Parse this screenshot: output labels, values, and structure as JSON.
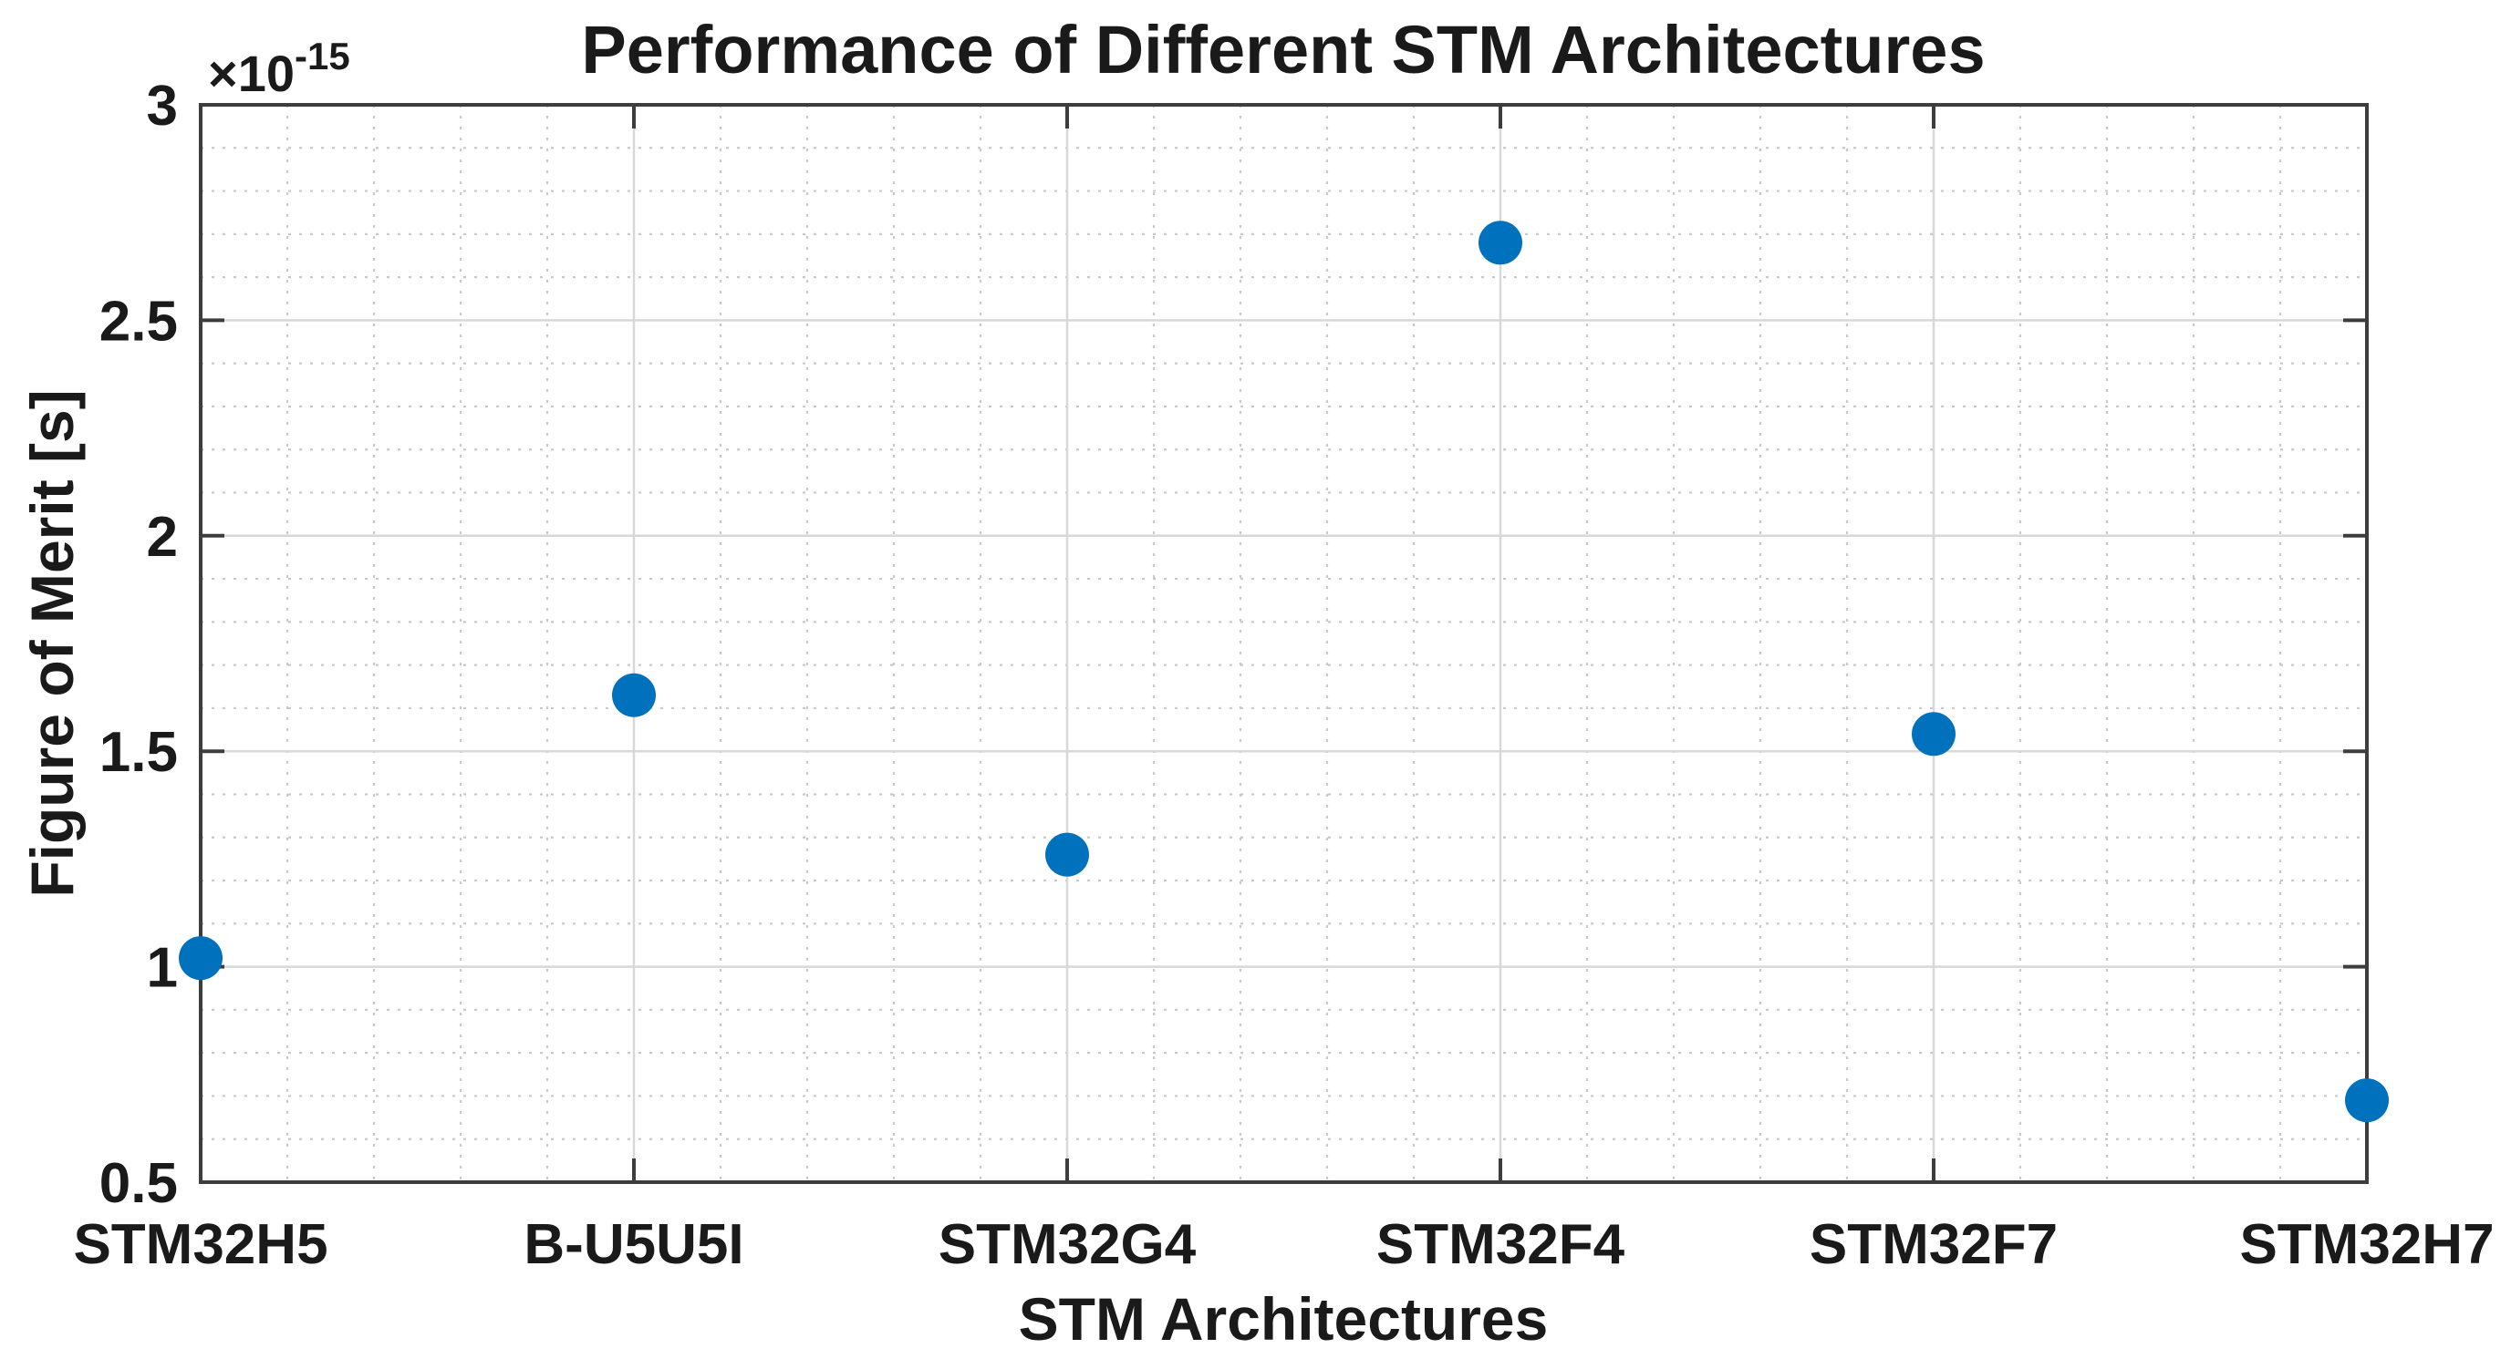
{
  "chart_data": {
    "type": "scatter",
    "title": "Performance of Different STM Architectures",
    "xlabel": "STM Architectures",
    "ylabel": "Figure of Merit [s]",
    "y_exponent_label": "×10",
    "y_exponent_power": "-15",
    "categories": [
      "STM32H5",
      "B-U5U5I",
      "STM32G4",
      "STM32F4",
      "STM32F7",
      "STM32H7"
    ],
    "values": [
      1.02,
      1.63,
      1.26,
      2.68,
      1.54,
      0.69
    ],
    "values_scale": "1e-15",
    "values_unit": "s",
    "ylim": [
      0.5,
      3
    ],
    "y_major_ticks": [
      0.5,
      1,
      1.5,
      2,
      2.5,
      3
    ],
    "y_tick_labels": [
      "0.5",
      "1",
      "1.5",
      "2",
      "2.5",
      "3"
    ],
    "y_minor_step": 0.1,
    "x_minor_divisions_per_major": 5,
    "grid": "on",
    "minor_grid": "on",
    "legend": "none",
    "marker_color": "#0072BD",
    "marker_radius_px": 24,
    "axis_color": "#3d3d3d",
    "text_color": "#1a1a1a",
    "major_grid_color": "#d8d8d8",
    "minor_grid_color": "#c9c9c9",
    "background_color": "#ffffff"
  }
}
